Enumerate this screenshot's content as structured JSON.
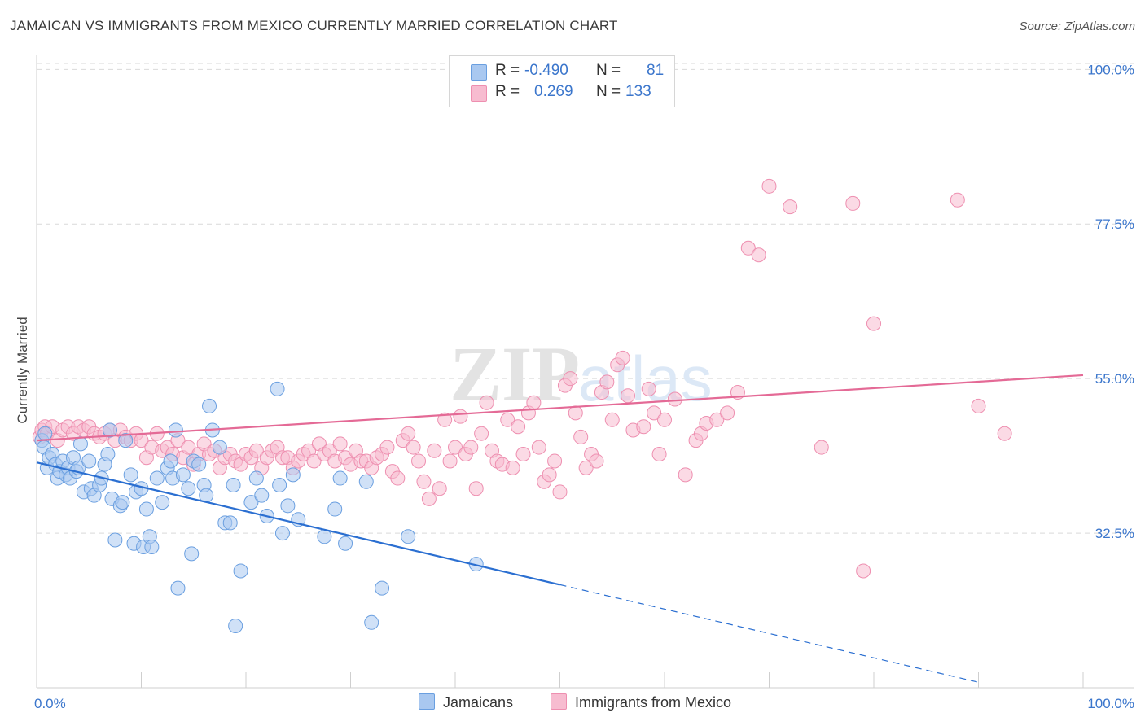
{
  "title": "JAMAICAN VS IMMIGRANTS FROM MEXICO CURRENTLY MARRIED CORRELATION CHART",
  "source": "Source: ZipAtlas.com",
  "watermark": {
    "zip": "ZIP",
    "atlas": "atlas"
  },
  "legend": {
    "series1": {
      "r_label": "R =",
      "r_value": "-0.490",
      "n_label": "N =",
      "n_value": "81"
    },
    "series2": {
      "r_label": "R =",
      "r_value": "0.269",
      "n_label": "N =",
      "n_value": "133"
    }
  },
  "colors": {
    "jamaicans_fill": "#a9c8f0",
    "jamaicans_stroke": "#6a9fe0",
    "jamaicans_line": "#2b6fd1",
    "mexico_fill": "#f7bcd0",
    "mexico_stroke": "#ee8fb0",
    "mexico_line": "#e46a96",
    "tick_text": "#3b76cc",
    "grid": "#d9d9d9"
  },
  "chart_data": {
    "type": "scatter",
    "title": "JAMAICAN VS IMMIGRANTS FROM MEXICO CURRENTLY MARRIED CORRELATION CHART",
    "xlabel": "",
    "ylabel": "Currently Married",
    "xlim": [
      0,
      100
    ],
    "ylim": [
      10,
      103
    ],
    "x_tick_labels": [
      "0.0%",
      "100.0%"
    ],
    "y_ticks": [
      32.5,
      55.0,
      77.5,
      100.0
    ],
    "y_tick_labels": [
      "32.5%",
      "55.0%",
      "77.5%",
      "100.0%"
    ],
    "legend_placement": "top-center",
    "series": [
      {
        "name": "Jamaicans",
        "r": -0.49,
        "n": 81,
        "trend": {
          "x0": 0,
          "y0": 42.8,
          "x1": 50,
          "y1": 25.0,
          "dash_to_x": 90,
          "dash_to_y": 10.8
        },
        "points": [
          [
            0.5,
            46
          ],
          [
            0.7,
            45
          ],
          [
            0.8,
            47
          ],
          [
            1,
            42
          ],
          [
            1.2,
            43.5
          ],
          [
            1.5,
            44
          ],
          [
            1.8,
            42.5
          ],
          [
            2,
            40.5
          ],
          [
            2.2,
            41.5
          ],
          [
            2.5,
            43
          ],
          [
            2.8,
            41
          ],
          [
            3,
            42
          ],
          [
            3.2,
            40.5
          ],
          [
            3.5,
            43.5
          ],
          [
            3.8,
            41.5
          ],
          [
            4,
            42
          ],
          [
            4.2,
            45.5
          ],
          [
            4.5,
            38.5
          ],
          [
            5,
            43
          ],
          [
            5.2,
            39
          ],
          [
            5.5,
            38
          ],
          [
            6,
            39.5
          ],
          [
            6.2,
            40.5
          ],
          [
            6.5,
            42.5
          ],
          [
            6.8,
            44
          ],
          [
            7,
            47.5
          ],
          [
            7.2,
            37.5
          ],
          [
            7.5,
            31.5
          ],
          [
            8,
            36.5
          ],
          [
            8.2,
            37
          ],
          [
            8.5,
            46
          ],
          [
            9,
            41
          ],
          [
            9.3,
            31
          ],
          [
            9.5,
            38.5
          ],
          [
            10,
            39
          ],
          [
            10.2,
            30.5
          ],
          [
            10.5,
            36
          ],
          [
            10.8,
            32
          ],
          [
            11,
            30.5
          ],
          [
            11.5,
            40.5
          ],
          [
            12,
            37
          ],
          [
            12.5,
            42
          ],
          [
            12.8,
            43
          ],
          [
            13,
            40.5
          ],
          [
            13.3,
            47.5
          ],
          [
            13.5,
            24.5
          ],
          [
            14,
            41
          ],
          [
            14.5,
            39
          ],
          [
            14.8,
            29.5
          ],
          [
            15,
            43
          ],
          [
            15.5,
            42.5
          ],
          [
            16,
            39.5
          ],
          [
            16.2,
            38
          ],
          [
            16.5,
            51
          ],
          [
            16.8,
            47.5
          ],
          [
            17.5,
            45
          ],
          [
            18,
            34
          ],
          [
            18.5,
            34
          ],
          [
            18.8,
            39.5
          ],
          [
            19,
            19
          ],
          [
            19.5,
            27
          ],
          [
            20.5,
            37
          ],
          [
            21,
            40.5
          ],
          [
            21.5,
            38
          ],
          [
            22,
            35
          ],
          [
            23,
            53.5
          ],
          [
            23.2,
            39.5
          ],
          [
            23.5,
            32.5
          ],
          [
            24,
            36.5
          ],
          [
            24.5,
            41
          ],
          [
            25,
            34.5
          ],
          [
            27.5,
            32
          ],
          [
            28.5,
            36
          ],
          [
            29,
            40.5
          ],
          [
            29.5,
            31
          ],
          [
            31.5,
            40
          ],
          [
            32,
            19.5
          ],
          [
            33,
            24.5
          ],
          [
            35.5,
            32
          ],
          [
            42,
            28
          ]
        ]
      },
      {
        "name": "Immigrants from Mexico",
        "r": 0.269,
        "n": 133,
        "trend": {
          "x0": 0,
          "y0": 46.0,
          "x1": 100,
          "y1": 55.5
        },
        "points": [
          [
            0.3,
            46.5
          ],
          [
            0.5,
            47.5
          ],
          [
            0.8,
            48
          ],
          [
            1,
            47
          ],
          [
            1.5,
            48
          ],
          [
            2,
            46
          ],
          [
            2.5,
            47.5
          ],
          [
            3,
            48
          ],
          [
            3.5,
            47
          ],
          [
            4,
            48
          ],
          [
            4.5,
            47.5
          ],
          [
            5,
            48
          ],
          [
            5.5,
            47
          ],
          [
            6,
            46.5
          ],
          [
            6.5,
            47
          ],
          [
            7,
            47.5
          ],
          [
            7.5,
            46
          ],
          [
            8,
            47.5
          ],
          [
            8.5,
            46.5
          ],
          [
            9,
            46
          ],
          [
            9.5,
            47
          ],
          [
            10,
            46
          ],
          [
            10.5,
            43.5
          ],
          [
            11,
            45
          ],
          [
            11.5,
            47
          ],
          [
            12,
            44.5
          ],
          [
            12.5,
            45
          ],
          [
            13,
            44
          ],
          [
            13.5,
            46
          ],
          [
            14,
            43.5
          ],
          [
            14.5,
            45
          ],
          [
            15,
            42.5
          ],
          [
            15.5,
            44
          ],
          [
            16,
            45.5
          ],
          [
            16.5,
            44
          ],
          [
            17,
            44.5
          ],
          [
            17.5,
            42
          ],
          [
            18,
            43.5
          ],
          [
            18.5,
            44
          ],
          [
            19,
            43
          ],
          [
            19.5,
            42.5
          ],
          [
            20,
            44
          ],
          [
            20.5,
            43.5
          ],
          [
            21,
            44.5
          ],
          [
            21.5,
            42
          ],
          [
            22,
            43.5
          ],
          [
            22.5,
            44.5
          ],
          [
            23,
            45
          ],
          [
            23.5,
            43.5
          ],
          [
            24,
            43.5
          ],
          [
            24.5,
            42
          ],
          [
            25,
            43
          ],
          [
            25.5,
            44
          ],
          [
            26,
            44.5
          ],
          [
            26.5,
            43
          ],
          [
            27,
            45.5
          ],
          [
            27.5,
            44
          ],
          [
            28,
            44.5
          ],
          [
            28.5,
            43
          ],
          [
            29,
            45.5
          ],
          [
            29.5,
            43.5
          ],
          [
            30,
            42.5
          ],
          [
            30.5,
            44.5
          ],
          [
            31,
            43
          ],
          [
            31.5,
            43
          ],
          [
            32,
            42
          ],
          [
            32.5,
            43.5
          ],
          [
            33,
            44
          ],
          [
            33.5,
            45
          ],
          [
            34,
            41.5
          ],
          [
            34.5,
            40.5
          ],
          [
            35,
            46
          ],
          [
            35.5,
            47
          ],
          [
            36,
            45
          ],
          [
            36.5,
            43
          ],
          [
            37,
            40
          ],
          [
            37.5,
            37.5
          ],
          [
            38,
            44.5
          ],
          [
            38.5,
            39
          ],
          [
            39,
            49
          ],
          [
            39.5,
            43
          ],
          [
            40,
            45
          ],
          [
            40.5,
            49.5
          ],
          [
            41,
            44
          ],
          [
            41.5,
            45
          ],
          [
            42,
            39
          ],
          [
            42.5,
            47
          ],
          [
            43,
            51.5
          ],
          [
            43.5,
            44.5
          ],
          [
            44,
            43
          ],
          [
            44.5,
            42.5
          ],
          [
            45,
            49
          ],
          [
            45.5,
            42
          ],
          [
            46,
            48
          ],
          [
            46.5,
            44
          ],
          [
            47,
            50
          ],
          [
            47.5,
            51.5
          ],
          [
            48,
            45
          ],
          [
            48.5,
            40
          ],
          [
            49,
            41
          ],
          [
            49.5,
            43
          ],
          [
            50,
            38.5
          ],
          [
            50.5,
            54
          ],
          [
            51,
            55
          ],
          [
            51.5,
            50
          ],
          [
            52,
            46.5
          ],
          [
            52.5,
            42
          ],
          [
            53,
            44
          ],
          [
            53.5,
            43
          ],
          [
            54,
            53
          ],
          [
            54.5,
            54.5
          ],
          [
            55,
            49
          ],
          [
            55.5,
            57
          ],
          [
            56,
            58
          ],
          [
            56.5,
            52.5
          ],
          [
            57,
            47.5
          ],
          [
            58,
            48
          ],
          [
            58.5,
            53.5
          ],
          [
            59,
            50
          ],
          [
            59.5,
            44
          ],
          [
            60,
            49
          ],
          [
            61,
            52
          ],
          [
            62,
            41
          ],
          [
            63,
            46
          ],
          [
            63.5,
            47
          ],
          [
            64,
            48.5
          ],
          [
            65,
            49
          ],
          [
            66,
            50
          ],
          [
            67,
            53
          ],
          [
            68,
            74
          ],
          [
            69,
            73
          ],
          [
            70,
            83
          ],
          [
            72,
            80
          ],
          [
            75,
            45
          ],
          [
            78,
            80.5
          ],
          [
            79,
            27
          ],
          [
            80,
            63
          ],
          [
            88,
            81
          ],
          [
            90,
            51
          ],
          [
            92.5,
            47
          ]
        ]
      }
    ]
  }
}
